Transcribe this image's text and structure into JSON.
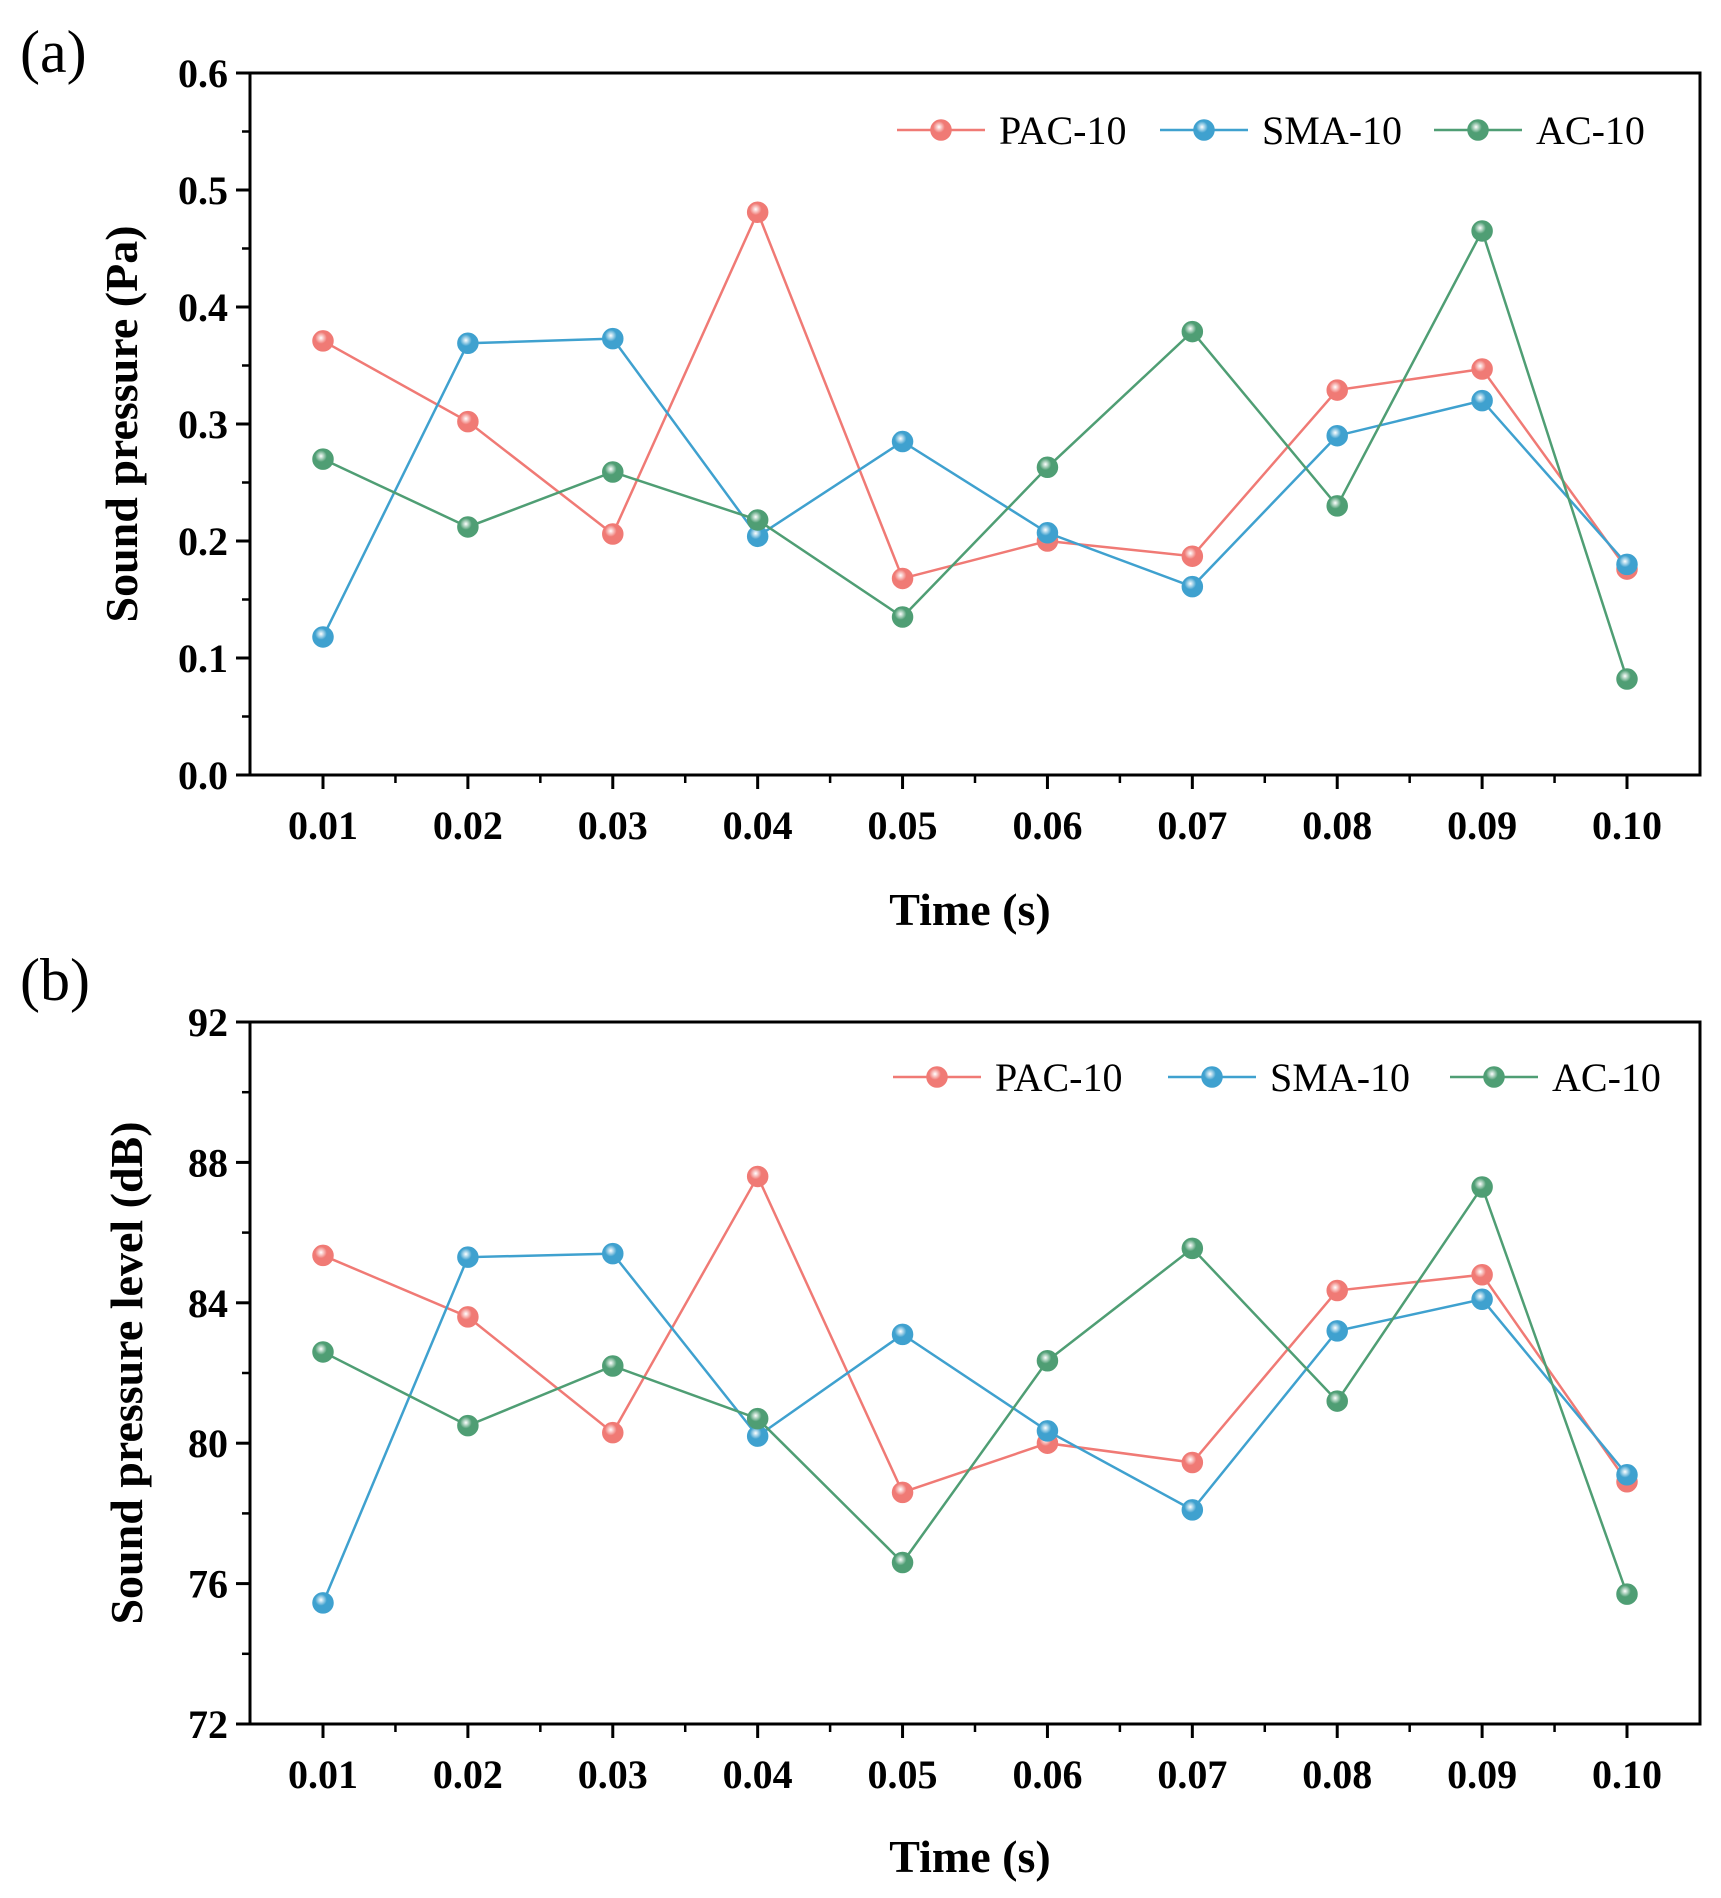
{
  "chart_data": [
    {
      "type": "line",
      "panel_label": "(a)",
      "xlabel": "Time (s)",
      "ylabel": "Sound pressure (Pa)",
      "ylim": [
        0.0,
        0.6
      ],
      "ytick_labels": [
        "0.0",
        "0.1",
        "0.2",
        "0.3",
        "0.4",
        "0.5",
        "0.6"
      ],
      "categories": [
        "0.01",
        "0.02",
        "0.03",
        "0.04",
        "0.05",
        "0.06",
        "0.07",
        "0.08",
        "0.09",
        "0.10"
      ],
      "legend_position": "top-right",
      "grid": false,
      "series": [
        {
          "name": "PAC-10",
          "color": "#f07a75",
          "values": [
            0.371,
            0.302,
            0.206,
            0.481,
            0.168,
            0.2,
            0.187,
            0.329,
            0.347,
            0.176
          ]
        },
        {
          "name": "SMA-10",
          "color": "#3fa1cf",
          "values": [
            0.118,
            0.369,
            0.373,
            0.204,
            0.285,
            0.207,
            0.161,
            0.29,
            0.32,
            0.18
          ]
        },
        {
          "name": "AC-10",
          "color": "#4f9e74",
          "values": [
            0.27,
            0.212,
            0.259,
            0.218,
            0.135,
            0.263,
            0.379,
            0.23,
            0.465,
            0.082
          ]
        }
      ]
    },
    {
      "type": "line",
      "panel_label": "(b)",
      "xlabel": "Time (s)",
      "ylabel": "Sound pressure level (dB)",
      "ylim": [
        72,
        92
      ],
      "ytick_labels": [
        "72",
        "76",
        "80",
        "84",
        "88",
        "92"
      ],
      "categories": [
        "0.01",
        "0.02",
        "0.03",
        "0.04",
        "0.05",
        "0.06",
        "0.07",
        "0.08",
        "0.09",
        "0.10"
      ],
      "legend_position": "top-right",
      "grid": false,
      "series": [
        {
          "name": "PAC-10",
          "color": "#f07a75",
          "values": [
            85.35,
            83.6,
            80.3,
            87.6,
            78.6,
            80.0,
            79.45,
            84.35,
            84.8,
            78.9
          ]
        },
        {
          "name": "SMA-10",
          "color": "#3fa1cf",
          "values": [
            75.45,
            85.3,
            85.4,
            80.2,
            83.1,
            80.35,
            78.1,
            83.2,
            84.1,
            79.1
          ]
        },
        {
          "name": "AC-10",
          "color": "#4f9e74",
          "values": [
            82.6,
            80.5,
            82.2,
            80.7,
            76.6,
            82.35,
            85.55,
            81.2,
            87.3,
            75.7
          ]
        }
      ]
    }
  ]
}
